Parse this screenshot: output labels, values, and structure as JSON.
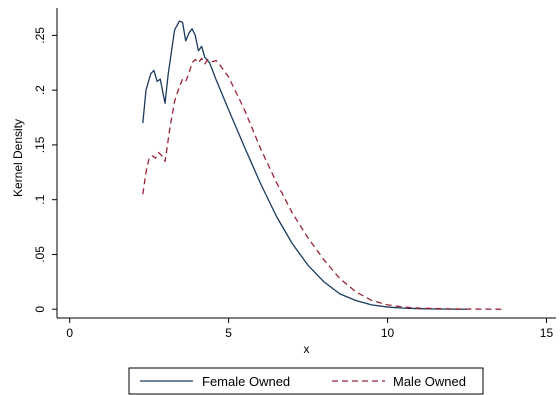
{
  "chart_data": {
    "type": "line",
    "title": "",
    "xlabel": "x",
    "ylabel": "Kernel Density",
    "xlim": [
      -0.4,
      15.3
    ],
    "ylim": [
      -0.008,
      0.275
    ],
    "x_ticks": [
      0,
      5,
      10,
      15
    ],
    "x_tick_labels": [
      "0",
      "5",
      "10",
      "15"
    ],
    "y_ticks": [
      0,
      0.05,
      0.1,
      0.15,
      0.2,
      0.25
    ],
    "y_tick_labels": [
      "0",
      ".05",
      ".1",
      ".15",
      ".2",
      ".25"
    ],
    "grid": false,
    "legend_position": "bottom",
    "series": [
      {
        "name": "Female Owned",
        "color": "#1b3a5c",
        "line_style": "solid",
        "points": [
          [
            2.3,
            0.17
          ],
          [
            2.4,
            0.2
          ],
          [
            2.55,
            0.215
          ],
          [
            2.65,
            0.218
          ],
          [
            2.75,
            0.208
          ],
          [
            2.85,
            0.21
          ],
          [
            2.95,
            0.195
          ],
          [
            3.0,
            0.188
          ],
          [
            3.1,
            0.215
          ],
          [
            3.2,
            0.235
          ],
          [
            3.3,
            0.255
          ],
          [
            3.45,
            0.263
          ],
          [
            3.55,
            0.262
          ],
          [
            3.65,
            0.245
          ],
          [
            3.75,
            0.252
          ],
          [
            3.85,
            0.256
          ],
          [
            3.95,
            0.25
          ],
          [
            4.05,
            0.236
          ],
          [
            4.15,
            0.24
          ],
          [
            4.25,
            0.23
          ],
          [
            4.4,
            0.225
          ],
          [
            4.6,
            0.21
          ],
          [
            5.0,
            0.182
          ],
          [
            5.5,
            0.148
          ],
          [
            6.0,
            0.115
          ],
          [
            6.5,
            0.085
          ],
          [
            7.0,
            0.06
          ],
          [
            7.5,
            0.04
          ],
          [
            8.0,
            0.025
          ],
          [
            8.5,
            0.014
          ],
          [
            9.0,
            0.008
          ],
          [
            9.5,
            0.004
          ],
          [
            10.0,
            0.002
          ],
          [
            10.5,
            0.001
          ],
          [
            11.0,
            0.0005
          ],
          [
            11.5,
            0.0002
          ],
          [
            12.0,
            0.0001
          ],
          [
            12.5,
            0.0
          ]
        ]
      },
      {
        "name": "Male Owned",
        "color": "#9b2335",
        "line_style": "dashed",
        "points": [
          [
            2.3,
            0.105
          ],
          [
            2.4,
            0.125
          ],
          [
            2.5,
            0.138
          ],
          [
            2.6,
            0.14
          ],
          [
            2.7,
            0.138
          ],
          [
            2.8,
            0.143
          ],
          [
            2.9,
            0.14
          ],
          [
            3.0,
            0.135
          ],
          [
            3.05,
            0.145
          ],
          [
            3.15,
            0.165
          ],
          [
            3.3,
            0.19
          ],
          [
            3.45,
            0.203
          ],
          [
            3.55,
            0.21
          ],
          [
            3.65,
            0.208
          ],
          [
            3.75,
            0.215
          ],
          [
            3.85,
            0.225
          ],
          [
            3.95,
            0.228
          ],
          [
            4.05,
            0.225
          ],
          [
            4.15,
            0.229
          ],
          [
            4.25,
            0.224
          ],
          [
            4.35,
            0.228
          ],
          [
            4.5,
            0.226
          ],
          [
            4.6,
            0.227
          ],
          [
            4.75,
            0.222
          ],
          [
            5.0,
            0.212
          ],
          [
            5.5,
            0.182
          ],
          [
            6.0,
            0.147
          ],
          [
            6.5,
            0.116
          ],
          [
            7.0,
            0.088
          ],
          [
            7.5,
            0.065
          ],
          [
            8.0,
            0.045
          ],
          [
            8.5,
            0.028
          ],
          [
            9.0,
            0.016
          ],
          [
            9.5,
            0.008
          ],
          [
            10.0,
            0.004
          ],
          [
            10.5,
            0.002
          ],
          [
            11.0,
            0.001
          ],
          [
            12.0,
            0.0003
          ],
          [
            13.0,
            0.0001
          ],
          [
            13.6,
            0.0
          ]
        ]
      }
    ]
  }
}
